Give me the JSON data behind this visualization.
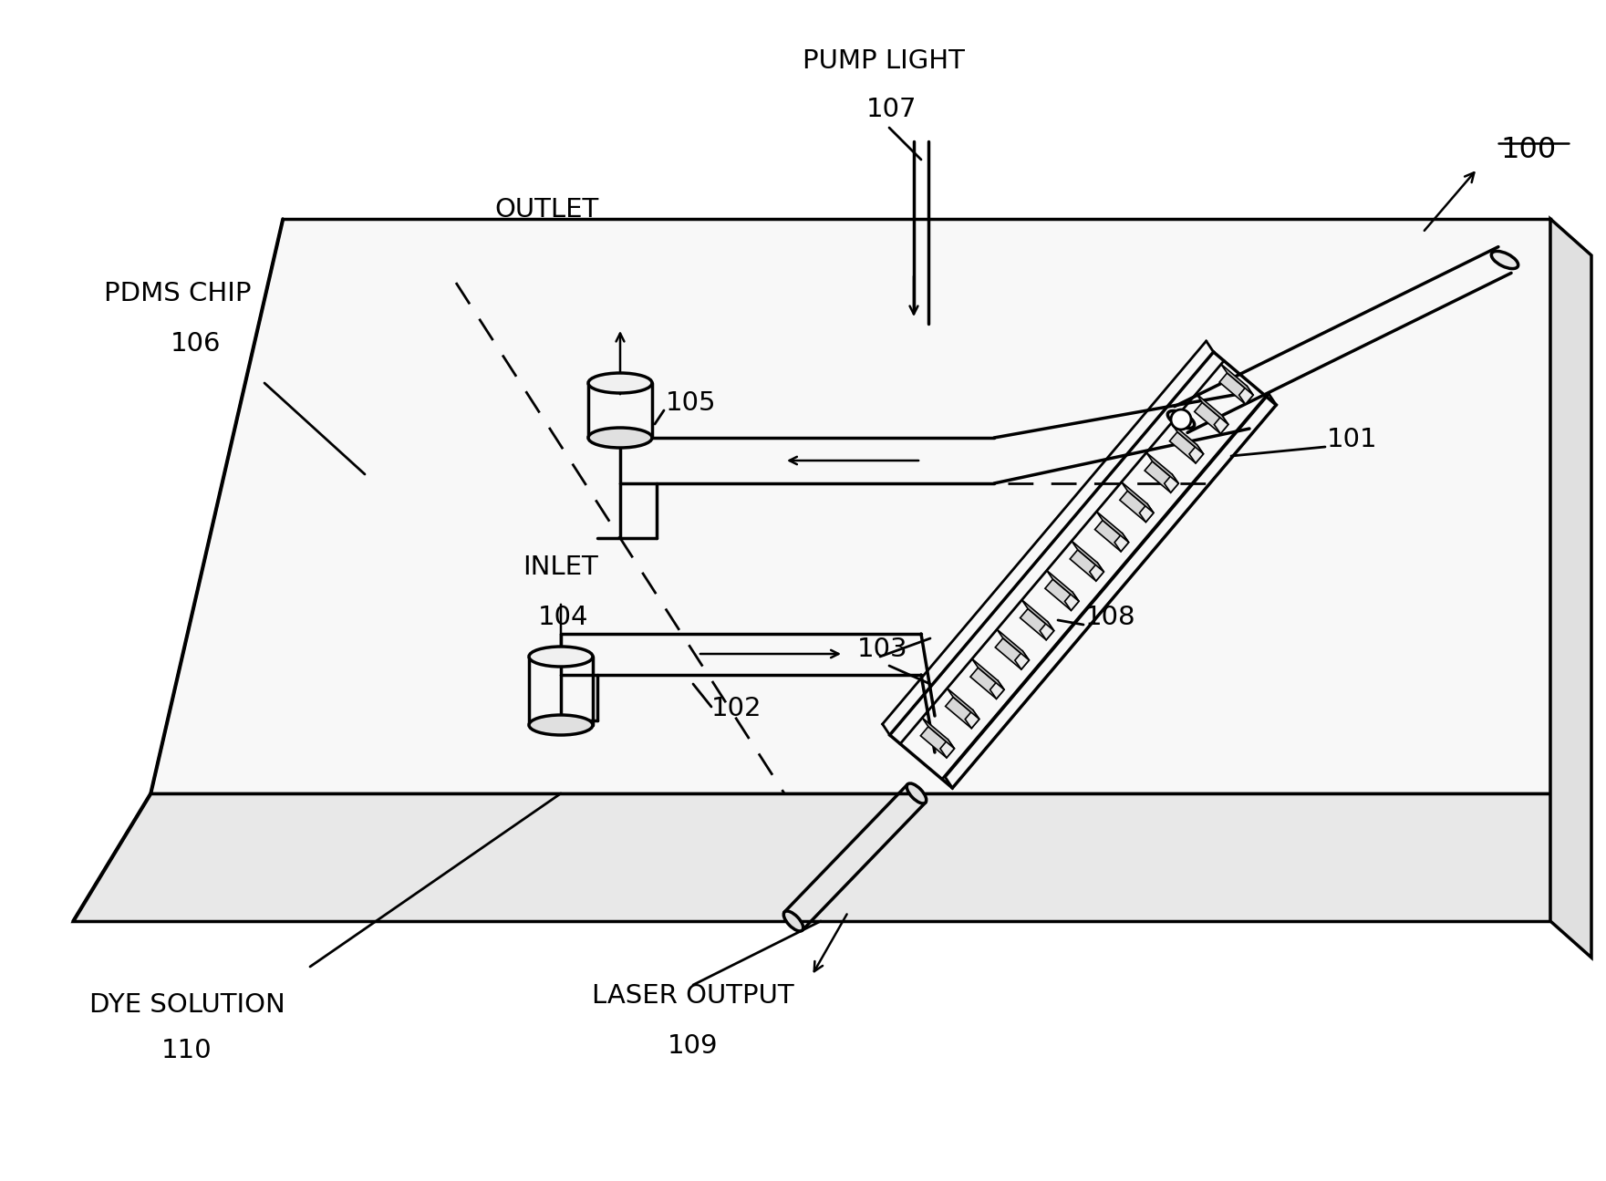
{
  "bg_color": "#ffffff",
  "line_color": "#000000",
  "labels": {
    "pump_light": "PUMP LIGHT",
    "pump_light_num": "107",
    "outlet": "OUTLET",
    "pdms_chip": "PDMS CHIP",
    "pdms_chip_num": "106",
    "inlet": "INLET",
    "inlet_num": "104",
    "dye_solution": "DYE SOLUTION",
    "dye_solution_num": "110",
    "laser_output": "LASER OUTPUT",
    "laser_output_num": "109",
    "num_100": "100",
    "num_101": "101",
    "num_102": "102",
    "num_103": "103",
    "num_105": "105",
    "num_108": "108"
  }
}
